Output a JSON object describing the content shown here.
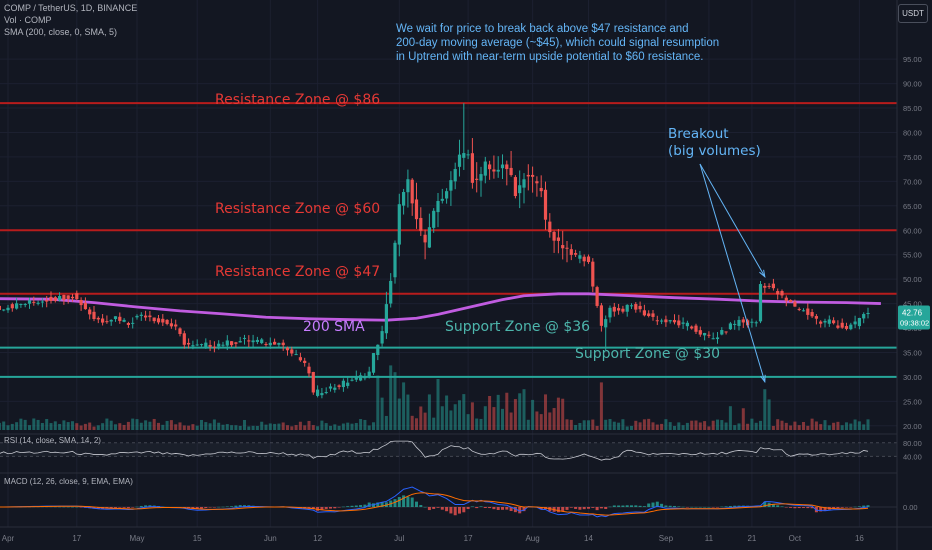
{
  "header": {
    "symbol_line": "COMP / TetherUS, 1D, BINANCE",
    "volume_line": "Vol · COMP",
    "sma_line": "SMA (200, close, 0, SMA, 5)"
  },
  "currency_badge": "USDT",
  "note": {
    "lines": [
      "We wait for price to break back above $47 resistance and",
      "200-day moving average (~$45), which could signal resumption",
      "in Uptrend with near-term upside potential to $60 resistance."
    ]
  },
  "indicators": {
    "rsi_label": "RSI (14, close, SMA, 14, 2)",
    "macd_label": "MACD (12, 26, close, 9, EMA, EMA)"
  },
  "colors": {
    "background": "#131722",
    "up_candle": "#26a69a",
    "down_candle": "#ef5350",
    "resistance": "#b71c1c",
    "resistance_text": "#e53935",
    "support": "#26a69a",
    "support_text": "#4db6ac",
    "sma": "#c05ce0",
    "annotation": "#64b5f6",
    "axis_text": "#787b86"
  },
  "chart_data": {
    "type": "candlestick",
    "price_axis": {
      "ylim": [
        17.5,
        98
      ],
      "ticks": [
        "95.00",
        "90.00",
        "85.00",
        "80.00",
        "75.00",
        "70.00",
        "65.00",
        "60.00",
        "55.00",
        "50.00",
        "45.00",
        "40.00",
        "35.00",
        "30.00",
        "25.00",
        "20.00"
      ]
    },
    "x_axis": {
      "tick_labels": [
        {
          "label": "Apr",
          "day": 0
        },
        {
          "label": "17",
          "day": 16
        },
        {
          "label": "May",
          "day": 30
        },
        {
          "label": "15",
          "day": 44
        },
        {
          "label": "Jun",
          "day": 61
        },
        {
          "label": "12",
          "day": 72
        },
        {
          "label": "Jul",
          "day": 91
        },
        {
          "label": "17",
          "day": 107
        },
        {
          "label": "Aug",
          "day": 122
        },
        {
          "label": "14",
          "day": 135
        },
        {
          "label": "Sep",
          "day": 153
        },
        {
          "label": "11",
          "day": 163
        },
        {
          "label": "21",
          "day": 173
        },
        {
          "label": "Oct",
          "day": 183
        },
        {
          "label": "16",
          "day": 198
        }
      ]
    },
    "last_price": {
      "value": "42.76",
      "countdown": "09:38:02"
    },
    "levels": [
      {
        "label": "Resistance Zone @ $86",
        "price": 86,
        "kind": "resistance"
      },
      {
        "label": "Resistance Zone @ $60",
        "price": 60,
        "kind": "resistance"
      },
      {
        "label": "Resistance Zone @ $47",
        "price": 47,
        "kind": "resistance"
      },
      {
        "label": "Support Zone @ $36",
        "price": 36,
        "kind": "support"
      },
      {
        "label": "Support Zone @ $30",
        "price": 30,
        "kind": "support"
      }
    ],
    "sma_label": "200 SMA",
    "sma_points": [
      [
        -2,
        46.0
      ],
      [
        10,
        45.9
      ],
      [
        20,
        45.2
      ],
      [
        30,
        44.3
      ],
      [
        40,
        43.5
      ],
      [
        50,
        42.9
      ],
      [
        60,
        42.2
      ],
      [
        70,
        41.9
      ],
      [
        80,
        41.7
      ],
      [
        88,
        41.6
      ],
      [
        95,
        42.0
      ],
      [
        100,
        42.8
      ],
      [
        108,
        44.4
      ],
      [
        115,
        45.8
      ],
      [
        120,
        46.6
      ],
      [
        128,
        47.0
      ],
      [
        135,
        47.0
      ],
      [
        145,
        46.6
      ],
      [
        155,
        46.2
      ],
      [
        165,
        45.9
      ],
      [
        175,
        45.5
      ],
      [
        185,
        45.3
      ],
      [
        195,
        45.2
      ],
      [
        203,
        45.0
      ]
    ],
    "breakout_annotation": {
      "lines": [
        "Breakout",
        "(big volumes)"
      ],
      "arrow_targets": [
        [
          176,
          50.5
        ],
        [
          176,
          29.0
        ]
      ]
    },
    "price_path": [
      [
        -2,
        44.0
      ],
      [
        2,
        44.5
      ],
      [
        6,
        45.2
      ],
      [
        10,
        45.8
      ],
      [
        14,
        46.3
      ],
      [
        16,
        46.6
      ],
      [
        18,
        45.0
      ],
      [
        21,
        42.0
      ],
      [
        23,
        41.5
      ],
      [
        26,
        42.3
      ],
      [
        29,
        41.0
      ],
      [
        32,
        42.8
      ],
      [
        34,
        42.5
      ],
      [
        36,
        41.3
      ],
      [
        38,
        41.0
      ],
      [
        40,
        39.8
      ],
      [
        42,
        37.0
      ],
      [
        44,
        36.2
      ],
      [
        47,
        36.5
      ],
      [
        50,
        36.8
      ],
      [
        53,
        37.0
      ],
      [
        56,
        37.5
      ],
      [
        59,
        37.3
      ],
      [
        62,
        36.8
      ],
      [
        64,
        37.5
      ],
      [
        66,
        35.5
      ],
      [
        69,
        33.5
      ],
      [
        71,
        31.0
      ],
      [
        72,
        26.5
      ],
      [
        75,
        27.5
      ],
      [
        78,
        28.3
      ],
      [
        81,
        29.5
      ],
      [
        83,
        30.0
      ],
      [
        85,
        31.0
      ],
      [
        86,
        34.5
      ],
      [
        87,
        37.0
      ],
      [
        88,
        39.0
      ],
      [
        90,
        50.0
      ],
      [
        92,
        65.0
      ],
      [
        94,
        70.0
      ],
      [
        96,
        62.0
      ],
      [
        98,
        57.0
      ],
      [
        100,
        64.0
      ],
      [
        102,
        67.0
      ],
      [
        104,
        70.0
      ],
      [
        106,
        75.0
      ],
      [
        108,
        75.5
      ],
      [
        109,
        70.0
      ],
      [
        111,
        71.0
      ],
      [
        112,
        74.0
      ],
      [
        114,
        72.0
      ],
      [
        116,
        73.5
      ],
      [
        118,
        71.0
      ],
      [
        119,
        67.0
      ],
      [
        121,
        71.0
      ],
      [
        123,
        70.5
      ],
      [
        125,
        68.0
      ],
      [
        126,
        62.0
      ],
      [
        128,
        58.0
      ],
      [
        130,
        56.5
      ],
      [
        132,
        55.0
      ],
      [
        134,
        54.5
      ],
      [
        136,
        54.0
      ],
      [
        137,
        48.0
      ],
      [
        139,
        40.5
      ],
      [
        141,
        44.0
      ],
      [
        143,
        43.5
      ],
      [
        146,
        44.5
      ],
      [
        148,
        43.5
      ],
      [
        150,
        42.5
      ],
      [
        153,
        41.5
      ],
      [
        156,
        41.0
      ],
      [
        159,
        40.5
      ],
      [
        162,
        39.0
      ],
      [
        165,
        37.8
      ],
      [
        167,
        39.0
      ],
      [
        169,
        40.5
      ],
      [
        171,
        41.5
      ],
      [
        173,
        40.8
      ],
      [
        175,
        41.2
      ],
      [
        176,
        49.0
      ],
      [
        178,
        48.5
      ],
      [
        180,
        47.0
      ],
      [
        182,
        45.5
      ],
      [
        184,
        44.5
      ],
      [
        186,
        43.5
      ],
      [
        188,
        42.5
      ],
      [
        190,
        41.0
      ],
      [
        192,
        41.5
      ],
      [
        194,
        40.5
      ],
      [
        196,
        40.0
      ],
      [
        198,
        40.8
      ],
      [
        199,
        42.0
      ],
      [
        200,
        42.76
      ]
    ],
    "volume_spikes": [
      [
        86,
        0.8
      ],
      [
        89,
        0.95
      ],
      [
        90,
        0.85
      ],
      [
        92,
        0.7
      ],
      [
        100,
        0.75
      ],
      [
        112,
        0.5
      ],
      [
        120,
        0.6
      ],
      [
        176,
        0.6
      ],
      [
        177,
        0.45
      ],
      [
        138,
        0.7
      ],
      [
        168,
        0.35
      ],
      [
        171,
        0.32
      ]
    ],
    "volume_axis": {
      "ylim": [
        0,
        1
      ]
    },
    "rsi_axis": {
      "ticks": [
        "80.00",
        "40.00"
      ],
      "range": [
        0,
        100
      ]
    },
    "macd_axis": {
      "ticks": [
        "0.00"
      ]
    }
  }
}
